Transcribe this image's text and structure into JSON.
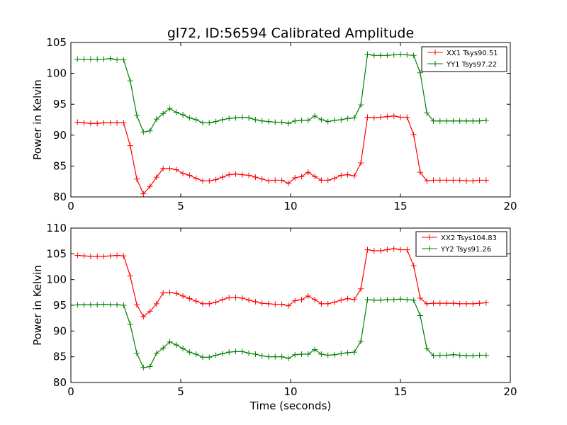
{
  "figure": {
    "title": "gl72, ID:56594 Calibrated Amplitude",
    "xlabel": "Time (seconds)"
  },
  "chart_data": [
    {
      "type": "line",
      "title": "gl72, ID:56594 Calibrated Amplitude",
      "xlabel": "",
      "ylabel": "Power in Kelvin",
      "xlim": [
        0,
        20
      ],
      "ylim": [
        80,
        105
      ],
      "xticks": [
        "0",
        "5",
        "10",
        "15",
        "20"
      ],
      "yticks": [
        "80",
        "85",
        "90",
        "95",
        "100",
        "105"
      ],
      "grid": false,
      "legend_position": "top-right",
      "x": [
        0.3,
        0.6,
        0.9,
        1.2,
        1.5,
        1.8,
        2.1,
        2.4,
        2.7,
        3.0,
        3.3,
        3.6,
        3.9,
        4.2,
        4.5,
        4.8,
        5.1,
        5.4,
        5.7,
        6.0,
        6.3,
        6.6,
        6.9,
        7.2,
        7.5,
        7.8,
        8.1,
        8.4,
        8.7,
        9.0,
        9.3,
        9.6,
        9.9,
        10.2,
        10.5,
        10.8,
        11.1,
        11.4,
        11.7,
        12.0,
        12.3,
        12.6,
        12.9,
        13.2,
        13.5,
        13.8,
        14.1,
        14.4,
        14.7,
        15.0,
        15.3,
        15.6,
        15.9,
        16.2,
        16.5,
        16.8,
        17.1,
        17.4,
        17.7,
        18.0,
        18.3,
        18.6,
        18.9
      ],
      "series": [
        {
          "name": "XX1 Tsys90.51",
          "color": "#ff0000",
          "values": [
            92.1,
            92.0,
            91.9,
            91.9,
            92.0,
            92.0,
            92.0,
            92.0,
            88.3,
            82.9,
            80.5,
            81.7,
            83.2,
            84.6,
            84.6,
            84.4,
            83.8,
            83.5,
            83.0,
            82.6,
            82.6,
            82.8,
            83.2,
            83.6,
            83.7,
            83.6,
            83.5,
            83.2,
            82.9,
            82.6,
            82.7,
            82.7,
            82.2,
            83.1,
            83.3,
            84.0,
            83.3,
            82.7,
            82.7,
            83.0,
            83.5,
            83.6,
            83.4,
            85.5,
            92.9,
            92.8,
            92.9,
            93.0,
            93.1,
            92.9,
            92.9,
            90.1,
            84.0,
            82.6,
            82.7,
            82.7,
            82.7,
            82.7,
            82.7,
            82.6,
            82.6,
            82.7,
            82.7
          ]
        },
        {
          "name": "YY1 Tsys97.22",
          "color": "#008000",
          "values": [
            102.3,
            102.3,
            102.3,
            102.3,
            102.3,
            102.4,
            102.2,
            102.2,
            98.8,
            93.2,
            90.5,
            90.7,
            92.6,
            93.5,
            94.3,
            93.7,
            93.3,
            92.8,
            92.5,
            92.0,
            92.0,
            92.2,
            92.5,
            92.7,
            92.8,
            92.9,
            92.8,
            92.5,
            92.3,
            92.2,
            92.1,
            92.1,
            91.9,
            92.3,
            92.4,
            92.4,
            93.1,
            92.5,
            92.2,
            92.4,
            92.5,
            92.7,
            92.8,
            94.9,
            103.1,
            102.9,
            102.9,
            102.9,
            103.0,
            103.1,
            103.0,
            102.9,
            100.1,
            93.6,
            92.3,
            92.3,
            92.3,
            92.3,
            92.3,
            92.3,
            92.3,
            92.3,
            92.4
          ]
        }
      ]
    },
    {
      "type": "line",
      "title": "",
      "xlabel": "Time (seconds)",
      "ylabel": "Power in Kelvin",
      "xlim": [
        0,
        20
      ],
      "ylim": [
        80,
        110
      ],
      "xticks": [
        "0",
        "5",
        "10",
        "15",
        "20"
      ],
      "yticks": [
        "80",
        "85",
        "90",
        "95",
        "100",
        "105",
        "110"
      ],
      "grid": false,
      "legend_position": "top-right",
      "x": [
        0.3,
        0.6,
        0.9,
        1.2,
        1.5,
        1.8,
        2.1,
        2.4,
        2.7,
        3.0,
        3.3,
        3.6,
        3.9,
        4.2,
        4.5,
        4.8,
        5.1,
        5.4,
        5.7,
        6.0,
        6.3,
        6.6,
        6.9,
        7.2,
        7.5,
        7.8,
        8.1,
        8.4,
        8.7,
        9.0,
        9.3,
        9.6,
        9.9,
        10.2,
        10.5,
        10.8,
        11.1,
        11.4,
        11.7,
        12.0,
        12.3,
        12.6,
        12.9,
        13.2,
        13.5,
        13.8,
        14.1,
        14.4,
        14.7,
        15.0,
        15.3,
        15.6,
        15.9,
        16.2,
        16.5,
        16.8,
        17.1,
        17.4,
        17.7,
        18.0,
        18.3,
        18.6,
        18.9
      ],
      "series": [
        {
          "name": "XX2 Tsys104.83",
          "color": "#ff0000",
          "values": [
            104.7,
            104.6,
            104.5,
            104.5,
            104.5,
            104.6,
            104.7,
            104.6,
            100.7,
            95.1,
            92.8,
            93.8,
            95.3,
            97.4,
            97.5,
            97.3,
            96.8,
            96.3,
            95.8,
            95.3,
            95.3,
            95.6,
            96.1,
            96.5,
            96.5,
            96.4,
            96.0,
            95.7,
            95.4,
            95.3,
            95.2,
            95.2,
            94.9,
            95.9,
            96.1,
            96.8,
            96.1,
            95.3,
            95.3,
            95.6,
            96.0,
            96.3,
            96.1,
            98.2,
            105.8,
            105.6,
            105.6,
            105.8,
            106.0,
            105.8,
            105.8,
            102.7,
            96.4,
            95.3,
            95.4,
            95.4,
            95.4,
            95.4,
            95.3,
            95.3,
            95.3,
            95.4,
            95.5
          ]
        },
        {
          "name": "YY2 Tsys91.26",
          "color": "#008000",
          "values": [
            95.1,
            95.1,
            95.1,
            95.1,
            95.2,
            95.1,
            95.1,
            95.0,
            91.3,
            85.7,
            82.9,
            83.1,
            85.7,
            86.7,
            87.9,
            87.3,
            86.6,
            85.9,
            85.5,
            84.9,
            84.9,
            85.3,
            85.6,
            85.9,
            86.0,
            86.0,
            85.7,
            85.5,
            85.2,
            85.0,
            85.0,
            85.0,
            84.7,
            85.4,
            85.5,
            85.5,
            86.4,
            85.5,
            85.3,
            85.4,
            85.6,
            85.8,
            85.9,
            88.0,
            96.1,
            96.0,
            96.0,
            96.1,
            96.1,
            96.2,
            96.1,
            96.0,
            93.0,
            86.6,
            85.2,
            85.3,
            85.3,
            85.4,
            85.3,
            85.2,
            85.2,
            85.3,
            85.3
          ]
        }
      ]
    }
  ]
}
